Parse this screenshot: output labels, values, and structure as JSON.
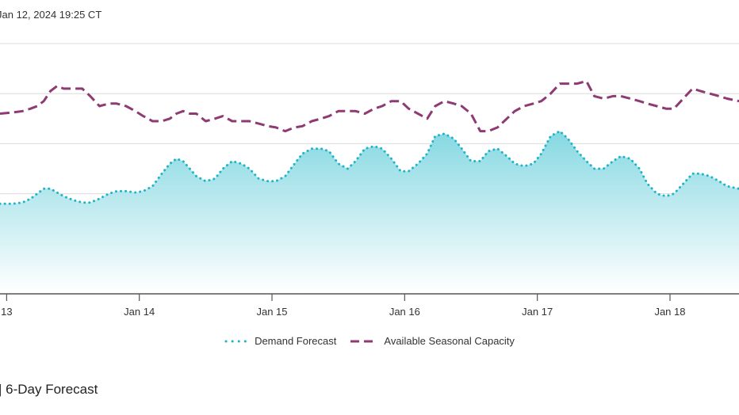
{
  "header": {
    "timestamp": "Jan 12, 2024 19:25 CT"
  },
  "footer": {
    "title": "| 6-Day Forecast"
  },
  "colors": {
    "demand_line": "#1fb5c9",
    "demand_fill_top": "#7fd6e0",
    "demand_fill_bottom": "#ffffff",
    "capacity_line": "#8e3a73",
    "grid": "#dcdcdc",
    "axis": "#555555"
  },
  "chart_data": {
    "type": "area",
    "x_tick_labels": [
      "13",
      "Jan 14",
      "Jan 15",
      "Jan 16",
      "Jan 17",
      "Jan 18"
    ],
    "x_tick_days": [
      13,
      14,
      15,
      16,
      17,
      18
    ],
    "x_range_days": [
      12.95,
      18.52
    ],
    "ylim": [
      0,
      100
    ],
    "y_grid": [
      20,
      40,
      60,
      80,
      100
    ],
    "grid": true,
    "legend_position": "bottom",
    "series": [
      {
        "name": "Demand Forecast",
        "style": "dotted",
        "x": [
          12.95,
          13.05,
          13.12,
          13.18,
          13.23,
          13.28,
          13.33,
          13.38,
          13.43,
          13.5,
          13.57,
          13.63,
          13.7,
          13.77,
          13.83,
          13.9,
          13.97,
          14.03,
          14.1,
          14.17,
          14.23,
          14.28,
          14.33,
          14.38,
          14.43,
          14.5,
          14.57,
          14.63,
          14.7,
          14.77,
          14.83,
          14.9,
          14.97,
          15.03,
          15.1,
          15.17,
          15.23,
          15.3,
          15.37,
          15.43,
          15.5,
          15.57,
          15.63,
          15.7,
          15.77,
          15.83,
          15.9,
          15.97,
          16.03,
          16.1,
          16.17,
          16.23,
          16.3,
          16.37,
          16.43,
          16.5,
          16.57,
          16.63,
          16.7,
          16.77,
          16.83,
          16.9,
          16.97,
          17.03,
          17.1,
          17.17,
          17.23,
          17.3,
          17.37,
          17.43,
          17.5,
          17.57,
          17.63,
          17.7,
          17.77,
          17.83,
          17.9,
          17.97,
          18.03,
          18.1,
          18.17,
          18.23,
          18.3,
          18.37,
          18.43,
          18.52
        ],
        "values": [
          36,
          36,
          36.5,
          38,
          40,
          42,
          42,
          40.5,
          39,
          37.5,
          36.5,
          36.5,
          38,
          40,
          41,
          41,
          40.5,
          41,
          43,
          48,
          52,
          54,
          53,
          50,
          47,
          45,
          46,
          50,
          53,
          52,
          50,
          46,
          45,
          45,
          47,
          52,
          56,
          58,
          58,
          57,
          52,
          50,
          53,
          58,
          59,
          58,
          54,
          49,
          49,
          52,
          56,
          63,
          64,
          62,
          58,
          53,
          53,
          57,
          58,
          55,
          52,
          51,
          52,
          56,
          63,
          65,
          62,
          57,
          53,
          50,
          50,
          53,
          55,
          54,
          50,
          44,
          40,
          39,
          40,
          44,
          48,
          48,
          47,
          45,
          43,
          42
        ],
        "notes": "Estimated from the plotted curve"
      },
      {
        "name": "Available Seasonal Capacity",
        "style": "dashed",
        "x": [
          12.95,
          13.05,
          13.12,
          13.18,
          13.23,
          13.28,
          13.33,
          13.38,
          13.43,
          13.5,
          13.57,
          13.63,
          13.7,
          13.77,
          13.83,
          13.9,
          13.97,
          14.03,
          14.1,
          14.17,
          14.23,
          14.28,
          14.33,
          14.38,
          14.43,
          14.5,
          14.57,
          14.63,
          14.7,
          14.77,
          14.83,
          14.9,
          14.97,
          15.03,
          15.1,
          15.17,
          15.23,
          15.3,
          15.37,
          15.43,
          15.5,
          15.57,
          15.63,
          15.7,
          15.77,
          15.83,
          15.9,
          15.97,
          16.03,
          16.1,
          16.17,
          16.23,
          16.3,
          16.37,
          16.43,
          16.5,
          16.57,
          16.63,
          16.7,
          16.77,
          16.83,
          16.9,
          16.97,
          17.03,
          17.1,
          17.17,
          17.23,
          17.3,
          17.37,
          17.43,
          17.5,
          17.57,
          17.63,
          17.7,
          17.77,
          17.83,
          17.9,
          17.97,
          18.03,
          18.1,
          18.17,
          18.23,
          18.3,
          18.37,
          18.43,
          18.52
        ],
        "values": [
          72,
          72.5,
          73,
          74,
          75,
          77,
          81,
          83,
          82,
          82,
          82,
          79,
          75,
          76,
          76,
          75,
          73,
          71,
          69,
          69,
          70,
          72,
          73,
          72,
          72,
          69,
          70,
          71,
          69,
          69,
          69,
          68,
          67,
          66.5,
          65,
          66.5,
          67,
          69,
          70,
          71,
          73,
          73,
          73,
          72,
          74,
          75,
          77,
          77,
          74,
          72,
          70,
          75,
          77,
          76,
          75,
          72,
          65,
          65,
          66.5,
          70,
          73,
          75,
          76,
          77,
          80,
          84,
          84,
          84,
          85,
          79,
          78,
          79,
          79,
          78,
          77,
          76,
          75,
          74,
          74,
          78,
          82,
          81,
          80,
          79,
          78,
          77
        ],
        "notes": "Estimated from the plotted curve"
      }
    ]
  }
}
